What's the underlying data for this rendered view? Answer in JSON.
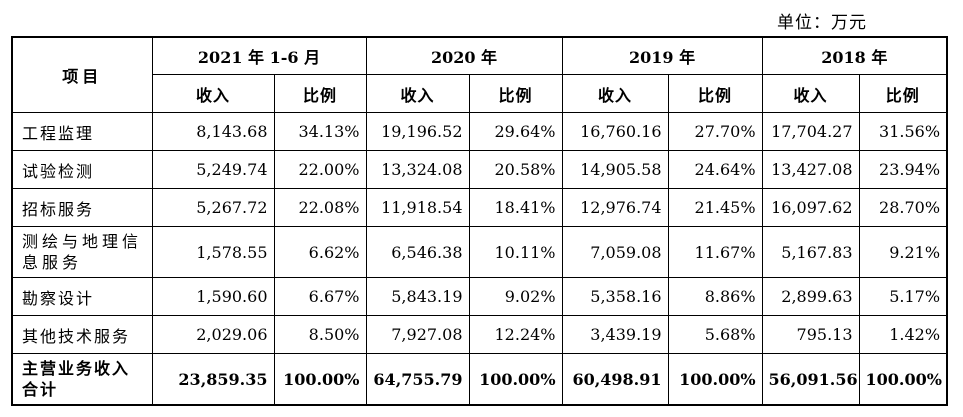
{
  "unit_label": "单位：万元",
  "header": {
    "item": "项目",
    "periods": [
      "2021 年 1-6 月",
      "2020 年",
      "2019 年",
      "2018 年"
    ],
    "sub": [
      "收入",
      "比例"
    ]
  },
  "rows": [
    {
      "item": "工程监理",
      "cells": [
        "8,143.68",
        "34.13%",
        "19,196.52",
        "29.64%",
        "16,760.16",
        "27.70%",
        "17,704.27",
        "31.56%"
      ]
    },
    {
      "item": "试验检测",
      "cells": [
        "5,249.74",
        "22.00%",
        "13,324.08",
        "20.58%",
        "14,905.58",
        "24.64%",
        "13,427.08",
        "23.94%"
      ]
    },
    {
      "item": "招标服务",
      "cells": [
        "5,267.72",
        "22.08%",
        "11,918.54",
        "18.41%",
        "12,976.74",
        "21.45%",
        "16,097.62",
        "28.70%"
      ]
    },
    {
      "item": "测绘与地理信息服务",
      "cells": [
        "1,578.55",
        "6.62%",
        "6,546.38",
        "10.11%",
        "7,059.08",
        "11.67%",
        "5,167.83",
        "9.21%"
      ]
    },
    {
      "item": "勘察设计",
      "cells": [
        "1,590.60",
        "6.67%",
        "5,843.19",
        "9.02%",
        "5,358.16",
        "8.86%",
        "2,899.63",
        "5.17%"
      ]
    },
    {
      "item": "其他技术服务",
      "cells": [
        "2,029.06",
        "8.50%",
        "7,927.08",
        "12.24%",
        "3,439.19",
        "5.68%",
        "795.13",
        "1.42%"
      ]
    }
  ],
  "total": {
    "item": "主营业务收入合计",
    "cells": [
      "23,859.35",
      "100.00%",
      "64,755.79",
      "100.00%",
      "60,498.91",
      "100.00%",
      "56,091.56",
      "100.00%"
    ]
  }
}
